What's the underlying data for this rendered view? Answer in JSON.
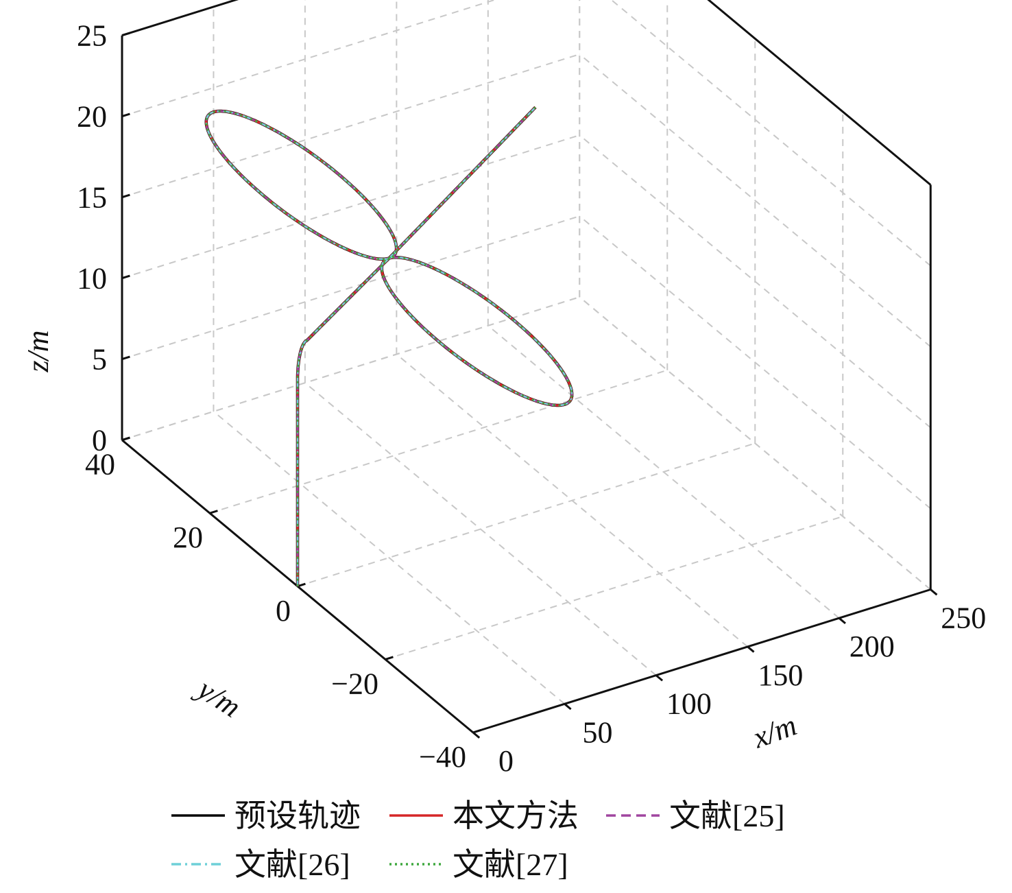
{
  "chart_data": {
    "type": "line3d",
    "xlabel": "x/m",
    "ylabel": "y/m",
    "zlabel": "z/m",
    "xlim": [
      0,
      250
    ],
    "ylim": [
      -40,
      40
    ],
    "zlim": [
      0,
      25
    ],
    "xticks": [
      0,
      50,
      100,
      150,
      200,
      250
    ],
    "yticks": [
      -40,
      -20,
      0,
      20,
      40
    ],
    "zticks": [
      0,
      5,
      10,
      15,
      20,
      25
    ],
    "x_tick_labels": [
      "0",
      "50",
      "100",
      "150",
      "200",
      "250"
    ],
    "y_tick_labels": [
      "−40",
      "−20",
      "0",
      "20",
      "40"
    ],
    "z_tick_labels": [
      "0",
      "5",
      "10",
      "15",
      "20",
      "25"
    ],
    "grid": true,
    "legend_position": "bottom",
    "trajectory_description_points": [
      {
        "x": 0,
        "y": 0,
        "z": 0
      },
      {
        "x": 0,
        "y": 0,
        "z": 13
      },
      {
        "x": 5,
        "y": 0,
        "z": 15
      },
      {
        "x": 50,
        "y": 0,
        "z": 18.5
      },
      {
        "x": 130,
        "y": 0,
        "z": 25
      },
      {
        "loop_1_center": {
          "x": 50,
          "y": 20,
          "z": 18.5
        },
        "radius": 20
      },
      {
        "loop_2_center": {
          "x": 50,
          "y": -20,
          "z": 18.5
        },
        "radius": 20
      }
    ],
    "series": [
      {
        "name": "预设轨迹",
        "color": "#000000",
        "dash": "solid"
      },
      {
        "name": "本文方法",
        "color": "#d62728",
        "dash": "solid"
      },
      {
        "name": "文献[25]",
        "color": "#a0459f",
        "dash": "dashed"
      },
      {
        "name": "文献[26]",
        "color": "#6fd0d8",
        "dash": "dashdot"
      },
      {
        "name": "文献[27]",
        "color": "#3fa83f",
        "dash": "dotted"
      }
    ]
  }
}
